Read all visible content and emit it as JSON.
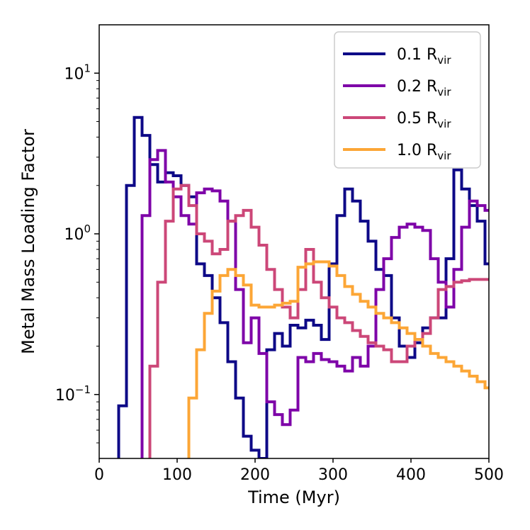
{
  "chart_data": {
    "type": "line",
    "style": "step",
    "xlabel": "Time (Myr)",
    "ylabel": "Metal Mass Loading Factor",
    "xlim": [
      0,
      500
    ],
    "ylim": [
      0.04,
      20
    ],
    "yscale": "log",
    "xticks": [
      0,
      100,
      200,
      300,
      400,
      500
    ],
    "xtick_labels": [
      "0",
      "100",
      "200",
      "300",
      "400",
      "500"
    ],
    "yticks": [
      {
        "value": 10,
        "base": "10",
        "exp": "1"
      },
      {
        "value": 1,
        "base": "10",
        "exp": "0"
      },
      {
        "value": 0.1,
        "base": "10",
        "exp": "−1"
      }
    ],
    "legend_position": "top-right",
    "series": [
      {
        "name": "0.1 Rvir",
        "label_main": "0.1 R",
        "label_sub": "vir",
        "color": "#0d0887",
        "x": [
          0,
          10,
          20,
          30,
          40,
          50,
          60,
          70,
          80,
          90,
          100,
          110,
          120,
          130,
          140,
          150,
          160,
          170,
          180,
          190,
          200,
          210,
          220,
          230,
          240,
          250,
          260,
          270,
          280,
          290,
          300,
          310,
          320,
          330,
          340,
          350,
          360,
          370,
          380,
          390,
          400,
          410,
          420,
          430,
          440,
          450,
          460,
          470,
          480,
          490,
          500
        ],
        "values": [
          null,
          null,
          null,
          0.085,
          2.0,
          5.3,
          4.1,
          2.7,
          2.1,
          2.4,
          2.3,
          2.0,
          1.7,
          0.65,
          0.55,
          0.4,
          0.28,
          0.16,
          0.095,
          0.055,
          0.045,
          0.04,
          0.19,
          0.24,
          0.2,
          0.27,
          0.26,
          0.29,
          0.27,
          0.22,
          0.65,
          1.3,
          1.9,
          1.6,
          1.2,
          0.9,
          0.6,
          0.55,
          0.3,
          0.2,
          0.17,
          0.21,
          0.26,
          0.3,
          0.3,
          0.7,
          2.5,
          1.9,
          1.5,
          1.2,
          0.65
        ]
      },
      {
        "name": "0.2 Rvir",
        "label_main": "0.2 R",
        "label_sub": "vir",
        "color": "#7e03a8",
        "x": [
          0,
          10,
          20,
          30,
          40,
          50,
          60,
          70,
          80,
          90,
          100,
          110,
          120,
          130,
          140,
          150,
          160,
          170,
          180,
          190,
          200,
          210,
          220,
          230,
          240,
          250,
          260,
          270,
          280,
          290,
          300,
          310,
          320,
          330,
          340,
          350,
          360,
          370,
          380,
          390,
          400,
          410,
          420,
          430,
          440,
          450,
          460,
          470,
          480,
          490,
          500
        ],
        "values": [
          null,
          null,
          null,
          null,
          null,
          null,
          1.3,
          2.9,
          3.3,
          2.1,
          1.7,
          1.3,
          1.15,
          1.8,
          1.9,
          1.85,
          1.6,
          1.2,
          0.45,
          0.21,
          0.3,
          0.18,
          0.09,
          0.075,
          0.065,
          0.08,
          0.17,
          0.16,
          0.18,
          0.165,
          0.16,
          0.15,
          0.14,
          0.17,
          0.15,
          0.2,
          0.45,
          0.7,
          0.95,
          1.1,
          1.15,
          1.1,
          1.05,
          0.7,
          0.5,
          0.35,
          0.6,
          1.1,
          1.6,
          1.5,
          1.4
        ]
      },
      {
        "name": "0.5 Rvir",
        "label_main": "0.5 R",
        "label_sub": "vir",
        "color": "#cc4778",
        "x": [
          0,
          10,
          20,
          30,
          40,
          50,
          60,
          70,
          80,
          90,
          100,
          110,
          120,
          130,
          140,
          150,
          160,
          170,
          180,
          190,
          200,
          210,
          220,
          230,
          240,
          250,
          260,
          270,
          280,
          290,
          300,
          310,
          320,
          330,
          340,
          350,
          360,
          370,
          380,
          390,
          400,
          410,
          420,
          430,
          440,
          450,
          460,
          470,
          480,
          490,
          500
        ],
        "values": [
          null,
          null,
          null,
          null,
          null,
          null,
          null,
          0.15,
          0.5,
          1.2,
          1.9,
          2.0,
          1.5,
          1.0,
          0.9,
          0.75,
          0.8,
          1.2,
          1.3,
          1.4,
          1.1,
          0.85,
          0.6,
          0.45,
          0.35,
          0.3,
          0.45,
          0.8,
          0.5,
          0.4,
          0.35,
          0.3,
          0.28,
          0.25,
          0.23,
          0.21,
          0.2,
          0.19,
          0.16,
          0.16,
          0.2,
          0.22,
          0.24,
          0.3,
          0.45,
          0.47,
          0.5,
          0.51,
          0.52,
          0.52,
          0.52
        ]
      },
      {
        "name": "1.0 Rvir",
        "label_main": "1.0 R",
        "label_sub": "vir",
        "color": "#fca636",
        "x": [
          0,
          10,
          20,
          30,
          40,
          50,
          60,
          70,
          80,
          90,
          100,
          110,
          120,
          130,
          140,
          150,
          160,
          170,
          180,
          190,
          200,
          210,
          220,
          230,
          240,
          250,
          260,
          270,
          280,
          290,
          300,
          310,
          320,
          330,
          340,
          350,
          360,
          370,
          380,
          390,
          400,
          410,
          420,
          430,
          440,
          450,
          460,
          470,
          480,
          490,
          500
        ],
        "values": [
          null,
          null,
          null,
          null,
          null,
          null,
          null,
          null,
          null,
          null,
          null,
          null,
          0.095,
          0.19,
          0.32,
          0.44,
          0.55,
          0.6,
          0.55,
          0.48,
          0.36,
          0.35,
          0.35,
          0.36,
          0.37,
          0.38,
          0.62,
          0.65,
          0.67,
          0.67,
          0.63,
          0.55,
          0.47,
          0.42,
          0.38,
          0.35,
          0.32,
          0.3,
          0.28,
          0.26,
          0.24,
          0.22,
          0.2,
          0.18,
          0.17,
          0.16,
          0.15,
          0.14,
          0.13,
          0.12,
          0.11
        ]
      }
    ]
  }
}
